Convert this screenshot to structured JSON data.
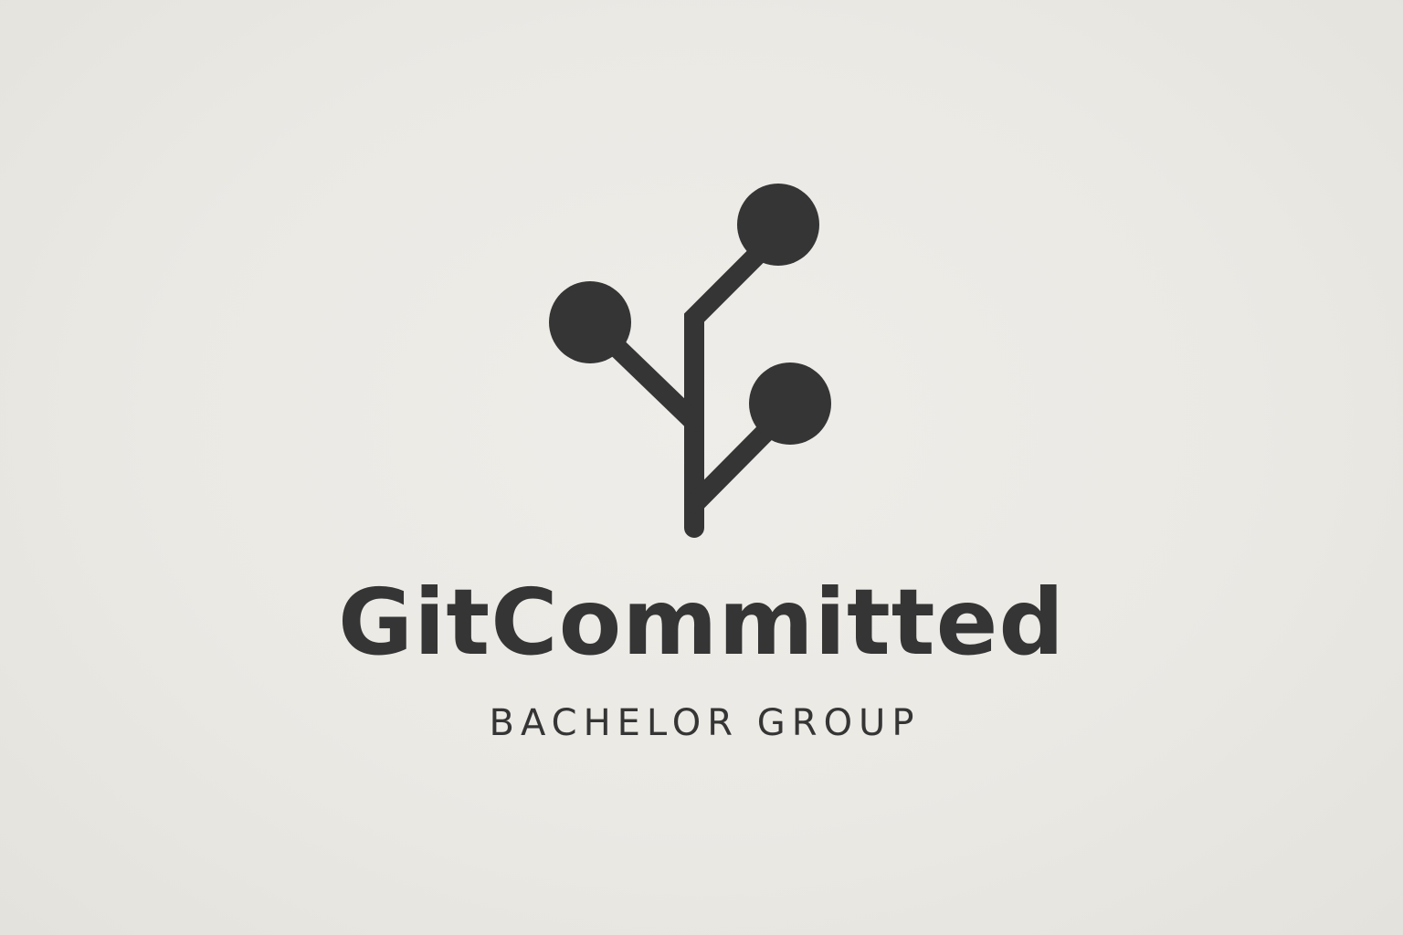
{
  "logo": {
    "icon": "branching-commit-tree-icon",
    "ink_color": "#353535",
    "paper_color": "#ebe9e4"
  },
  "brand": {
    "name": "GitCommitted",
    "tagline": "BACHELOR GROUP"
  }
}
